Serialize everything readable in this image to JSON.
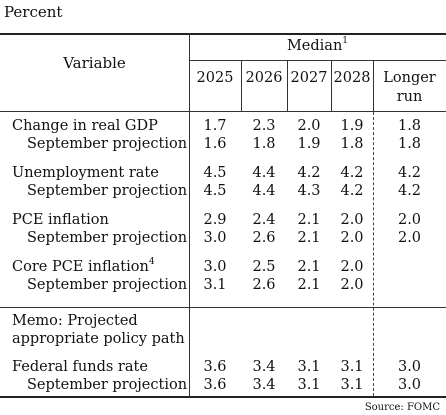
{
  "unit_label": "Percent",
  "header": {
    "variable": "Variable",
    "median": "Median",
    "median_note": "1",
    "years": [
      "2025",
      "2026",
      "2027",
      "2028"
    ],
    "longer_run_line1": "Longer",
    "longer_run_line2": "run"
  },
  "rows": [
    {
      "label": "Change in real GDP",
      "note": "",
      "values": [
        "1.7",
        "2.3",
        "2.0",
        "1.9",
        "1.8"
      ]
    },
    {
      "label": "September projection",
      "note": "",
      "values": [
        "1.6",
        "1.8",
        "1.9",
        "1.8",
        "1.8"
      ]
    },
    {
      "label": "Unemployment rate",
      "note": "",
      "values": [
        "4.5",
        "4.4",
        "4.2",
        "4.2",
        "4.2"
      ]
    },
    {
      "label": "September projection",
      "note": "",
      "values": [
        "4.5",
        "4.4",
        "4.3",
        "4.2",
        "4.2"
      ]
    },
    {
      "label": "PCE inflation",
      "note": "",
      "values": [
        "2.9",
        "2.4",
        "2.1",
        "2.0",
        "2.0"
      ]
    },
    {
      "label": "September projection",
      "note": "",
      "values": [
        "3.0",
        "2.6",
        "2.1",
        "2.0",
        "2.0"
      ]
    },
    {
      "label": "Core PCE inflation",
      "note": "4",
      "values": [
        "3.0",
        "2.5",
        "2.1",
        "2.0",
        ""
      ]
    },
    {
      "label": "September projection",
      "note": "",
      "values": [
        "3.1",
        "2.6",
        "2.1",
        "2.0",
        ""
      ]
    },
    {
      "label": "Federal funds rate",
      "note": "",
      "values": [
        "3.6",
        "3.4",
        "3.1",
        "3.1",
        "3.0"
      ]
    },
    {
      "label": "September projection",
      "note": "",
      "values": [
        "3.6",
        "3.4",
        "3.1",
        "3.1",
        "3.0"
      ]
    }
  ],
  "memo_line1": "Memo: Projected",
  "memo_line2": "appropriate policy path",
  "source": "Source: FOMC"
}
